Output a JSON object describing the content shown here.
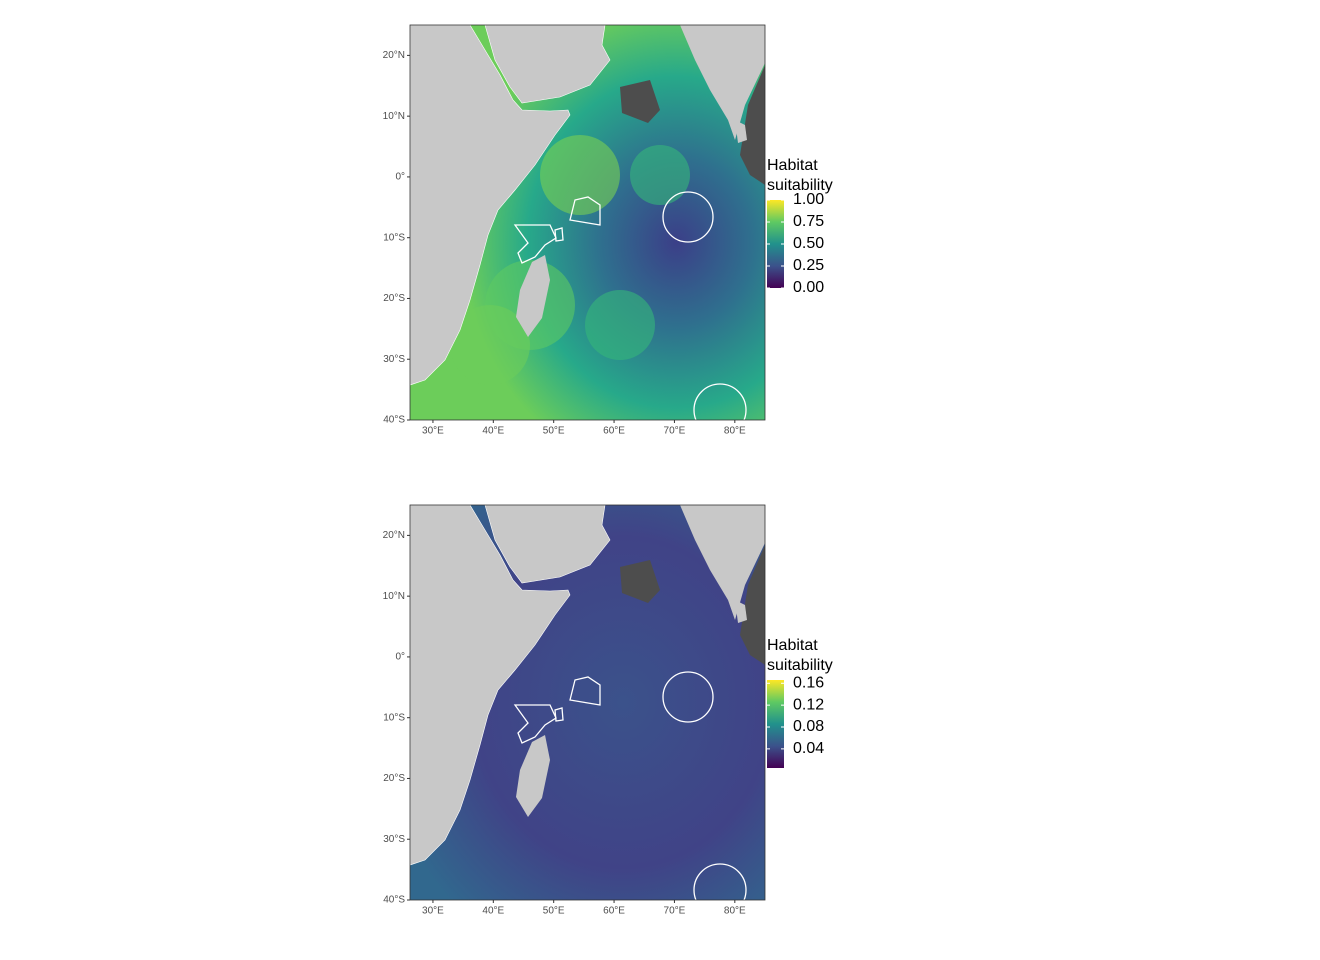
{
  "maps": [
    {
      "xlim": [
        26.2,
        85
      ],
      "ylim": [
        -40,
        25
      ],
      "xticks": [
        {
          "value": 30,
          "label": "30°E"
        },
        {
          "value": 40,
          "label": "40°E"
        },
        {
          "value": 50,
          "label": "50°E"
        },
        {
          "value": 60,
          "label": "60°E"
        },
        {
          "value": 70,
          "label": "70°E"
        },
        {
          "value": 80,
          "label": "80°E"
        }
      ],
      "yticks": [
        {
          "value": 20,
          "label": "20°N"
        },
        {
          "value": 10,
          "label": "10°N"
        },
        {
          "value": 0,
          "label": "0°"
        },
        {
          "value": -10,
          "label": "10°S"
        },
        {
          "value": -20,
          "label": "20°S"
        },
        {
          "value": -30,
          "label": "30°S"
        },
        {
          "value": -40,
          "label": "40°S"
        }
      ],
      "legend": {
        "title": [
          "Habitat",
          "suitability"
        ],
        "limits": [
          0,
          1
        ],
        "ticks": [
          {
            "value": 1,
            "label": "1.00"
          },
          {
            "value": 0.75,
            "label": "0.75"
          },
          {
            "value": 0.5,
            "label": "0.50"
          },
          {
            "value": 0.25,
            "label": "0.25"
          },
          {
            "value": 0,
            "label": "0.00"
          }
        ]
      }
    },
    {
      "xlim": [
        26.2,
        85
      ],
      "ylim": [
        -40,
        25
      ],
      "xticks": [
        {
          "value": 30,
          "label": "30°E"
        },
        {
          "value": 40,
          "label": "40°E"
        },
        {
          "value": 50,
          "label": "50°E"
        },
        {
          "value": 60,
          "label": "60°E"
        },
        {
          "value": 70,
          "label": "70°E"
        },
        {
          "value": 80,
          "label": "80°E"
        }
      ],
      "yticks": [
        {
          "value": 20,
          "label": "20°N"
        },
        {
          "value": 10,
          "label": "10°N"
        },
        {
          "value": 0,
          "label": "0°"
        },
        {
          "value": -10,
          "label": "10°S"
        },
        {
          "value": -20,
          "label": "20°S"
        },
        {
          "value": -30,
          "label": "30°S"
        },
        {
          "value": -40,
          "label": "40°S"
        }
      ],
      "legend": {
        "title": [
          "Habitat",
          "suitability"
        ],
        "limits": [
          0.005,
          0.166
        ],
        "ticks": [
          {
            "value": 0.16,
            "label": "0.16"
          },
          {
            "value": 0.12,
            "label": "0.12"
          },
          {
            "value": 0.08,
            "label": "0.08"
          },
          {
            "value": 0.04,
            "label": "0.04"
          }
        ]
      }
    }
  ]
}
